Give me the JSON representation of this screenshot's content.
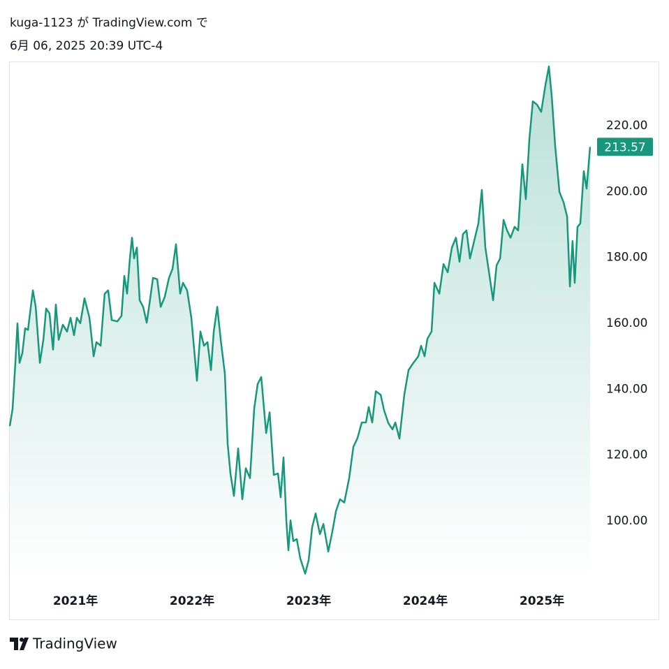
{
  "header": {
    "author": "kuga-1123 が TradingView.com で",
    "timestamp": "6月 06, 2025 20:39 UTC-4"
  },
  "footer": {
    "brand": "TradingView"
  },
  "chart_data": {
    "type": "area",
    "color": "#17977c",
    "x": [
      2020.437,
      2020.461,
      2020.485,
      2020.503,
      2020.521,
      2020.545,
      2020.569,
      2020.593,
      2020.617,
      2020.635,
      2020.659,
      2020.695,
      2020.725,
      2020.749,
      2020.778,
      2020.808,
      2020.832,
      2020.856,
      2020.892,
      2020.928,
      2020.958,
      2020.988,
      2021.012,
      2021.042,
      2021.078,
      2021.12,
      2021.156,
      2021.18,
      2021.216,
      2021.251,
      2021.281,
      2021.311,
      2021.359,
      2021.395,
      2021.419,
      2021.443,
      2021.467,
      2021.485,
      2021.503,
      2021.527,
      2021.551,
      2021.581,
      2021.611,
      2021.635,
      2021.665,
      2021.701,
      2021.731,
      2021.766,
      2021.802,
      2021.832,
      2021.862,
      2021.898,
      2021.922,
      2021.958,
      2021.994,
      2022.042,
      2022.072,
      2022.102,
      2022.132,
      2022.162,
      2022.186,
      2022.216,
      2022.246,
      2022.281,
      2022.305,
      2022.329,
      2022.359,
      2022.395,
      2022.431,
      2022.461,
      2022.497,
      2022.533,
      2022.563,
      2022.593,
      2022.635,
      2022.665,
      2022.701,
      2022.737,
      2022.76,
      2022.784,
      2022.808,
      2022.826,
      2022.844,
      2022.868,
      2022.898,
      2022.928,
      2022.97,
      2023.0,
      2023.03,
      2023.06,
      2023.096,
      2023.126,
      2023.168,
      2023.204,
      2023.234,
      2023.269,
      2023.305,
      2023.347,
      2023.383,
      2023.419,
      2023.455,
      2023.491,
      2023.515,
      2023.545,
      2023.575,
      2023.617,
      2023.647,
      2023.683,
      2023.719,
      2023.743,
      2023.778,
      2023.82,
      2023.856,
      2023.898,
      2023.94,
      2023.964,
      2023.994,
      2024.018,
      2024.054,
      2024.078,
      2024.12,
      2024.156,
      2024.192,
      2024.228,
      2024.263,
      2024.293,
      2024.323,
      2024.353,
      2024.383,
      2024.419,
      2024.455,
      2024.485,
      2024.515,
      2024.551,
      2024.581,
      2024.611,
      2024.641,
      2024.671,
      2024.701,
      2024.731,
      2024.766,
      2024.796,
      2024.832,
      2024.862,
      2024.892,
      2024.922,
      2024.958,
      2024.994,
      2025.03,
      2025.06,
      2025.084,
      2025.114,
      2025.15,
      2025.186,
      2025.216,
      2025.24,
      2025.263,
      2025.281,
      2025.305,
      2025.329,
      2025.359,
      2025.383,
      2025.413
    ],
    "values": [
      128.8,
      134,
      148,
      160,
      148,
      151,
      158.5,
      158,
      165,
      170,
      165,
      148,
      155,
      164.5,
      163,
      152,
      165.7,
      155,
      159.6,
      157.5,
      161.7,
      156.4,
      161.7,
      160,
      167.6,
      161.7,
      150,
      154.3,
      153.2,
      169,
      170,
      161,
      160.6,
      162.3,
      174.4,
      169,
      179.7,
      186,
      179.7,
      183,
      167,
      165,
      160.2,
      166,
      173.8,
      173.4,
      165,
      168,
      173.8,
      176.5,
      184,
      169,
      172.3,
      170,
      161.7,
      142.6,
      157.5,
      153.2,
      154.3,
      145.8,
      157.5,
      165,
      155,
      144.7,
      123.5,
      114.4,
      107.6,
      122,
      106.6,
      116,
      113,
      134.1,
      141.6,
      143.7,
      126.7,
      133,
      114,
      114.4,
      107.2,
      119.3,
      100.2,
      91.1,
      100.2,
      93.9,
      94.5,
      88.6,
      84,
      88.1,
      98.1,
      102.3,
      96,
      99.1,
      90.7,
      97,
      103,
      106.6,
      105.6,
      113,
      122.5,
      125.2,
      129.9,
      129.9,
      134.6,
      129.9,
      139.4,
      138.3,
      133.5,
      129.7,
      127.8,
      129.9,
      125,
      138.4,
      145.8,
      148,
      150,
      153.2,
      150,
      155.3,
      157.5,
      172.3,
      169,
      178,
      175.5,
      183,
      186,
      178.7,
      187.1,
      188.2,
      179.7,
      185,
      190.3,
      200.5,
      183,
      174.4,
      167,
      177.6,
      179.7,
      191.4,
      188.2,
      186,
      189.3,
      188.2,
      208.3,
      197.7,
      215.8,
      227.4,
      226.4,
      224.2,
      232.3,
      238,
      228.9,
      213.6,
      199.9,
      196.7,
      192.4,
      171.2,
      185,
      172.3,
      189.3,
      190.3,
      206.2,
      200.9,
      213.57
    ],
    "xlim": [
      2020.437,
      2025.413
    ],
    "ylim": [
      69.9,
      239.5
    ],
    "xticks": [
      {
        "value": 2021,
        "label": "2021年"
      },
      {
        "value": 2022,
        "label": "2022年"
      },
      {
        "value": 2023,
        "label": "2023年"
      },
      {
        "value": 2024,
        "label": "2024年"
      },
      {
        "value": 2025,
        "label": "2025年"
      }
    ],
    "yticks": [
      {
        "value": 100,
        "label": "100.00"
      },
      {
        "value": 120,
        "label": "120.00"
      },
      {
        "value": 140,
        "label": "140.00"
      },
      {
        "value": 160,
        "label": "160.00"
      },
      {
        "value": 180,
        "label": "180.00"
      },
      {
        "value": 200,
        "label": "200.00"
      },
      {
        "value": 220,
        "label": "220.00"
      }
    ],
    "grid": false
  }
}
